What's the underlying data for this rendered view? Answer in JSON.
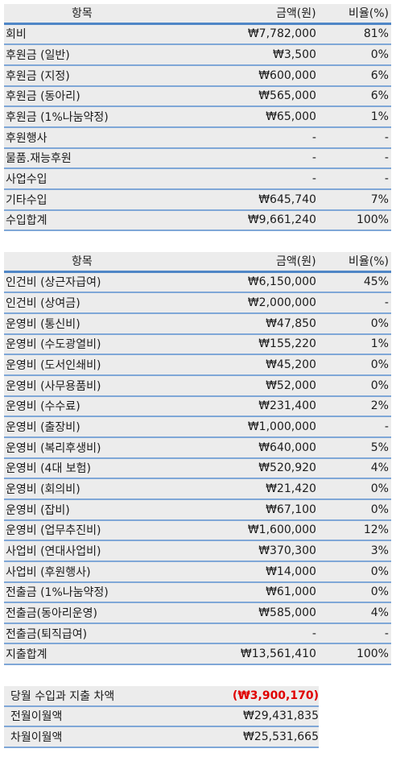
{
  "income": {
    "headers": [
      "항목",
      "금액(원)",
      "비율(%)"
    ],
    "rows": [
      [
        "회비",
        "₩7,782,000",
        "81%"
      ],
      [
        "후원금 (일반)",
        "₩3,500",
        "0%"
      ],
      [
        "후원금 (지정)",
        "₩600,000",
        "6%"
      ],
      [
        "후원금 (동아리)",
        "₩565,000",
        "6%"
      ],
      [
        "후원금 (1%나눔약정)",
        "₩65,000",
        "1%"
      ],
      [
        "후원행사",
        "-",
        "-"
      ],
      [
        "물품.재능후원",
        "-",
        "-"
      ],
      [
        "사업수입",
        "-",
        "-"
      ],
      [
        "기타수입",
        "₩645,740",
        "7%"
      ],
      [
        "수입합계",
        "₩9,661,240",
        "100%"
      ]
    ]
  },
  "expense": {
    "headers": [
      "항목",
      "금액(원)",
      "비율(%)"
    ],
    "rows": [
      [
        "인건비 (상근자급여)",
        "₩6,150,000",
        "45%"
      ],
      [
        "인건비 (상여금)",
        "₩2,000,000",
        "-"
      ],
      [
        "운영비 (통신비)",
        "₩47,850",
        "0%"
      ],
      [
        "운영비 (수도광열비)",
        "₩155,220",
        "1%"
      ],
      [
        "운영비 (도서인쇄비)",
        "₩45,200",
        "0%"
      ],
      [
        "운영비 (사무용품비)",
        "₩52,000",
        "0%"
      ],
      [
        "운영비 (수수료)",
        "₩231,400",
        "2%"
      ],
      [
        "운영비 (출장비)",
        "₩1,000,000",
        "-"
      ],
      [
        "운영비 (복리후생비)",
        "₩640,000",
        "5%"
      ],
      [
        "운영비 (4대 보험)",
        "₩520,920",
        "4%"
      ],
      [
        "운영비 (회의비)",
        "₩21,420",
        "0%"
      ],
      [
        "운영비 (잡비)",
        "₩67,100",
        "0%"
      ],
      [
        "운영비 (업무추진비)",
        "₩1,600,000",
        "12%"
      ],
      [
        "사업비 (연대사업비)",
        "₩370,300",
        "3%"
      ],
      [
        "사업비 (후원행사)",
        "₩14,000",
        "0%"
      ],
      [
        "전출금 (1%나눔약정)",
        "₩61,000",
        "0%"
      ],
      [
        "전출금(동아리운영)",
        "₩585,000",
        "4%"
      ],
      [
        "전출금(퇴직급여)",
        "-",
        "-"
      ],
      [
        "지출합계",
        "₩13,561,410",
        "100%"
      ]
    ]
  },
  "summary": {
    "rows": [
      [
        "당월 수입과 지출 차액",
        "(₩3,900,170)"
      ],
      [
        "전월이월액",
        "₩29,431,835"
      ],
      [
        "차월이월액",
        "₩25,531,665"
      ]
    ],
    "negative_color": "#e00000"
  }
}
